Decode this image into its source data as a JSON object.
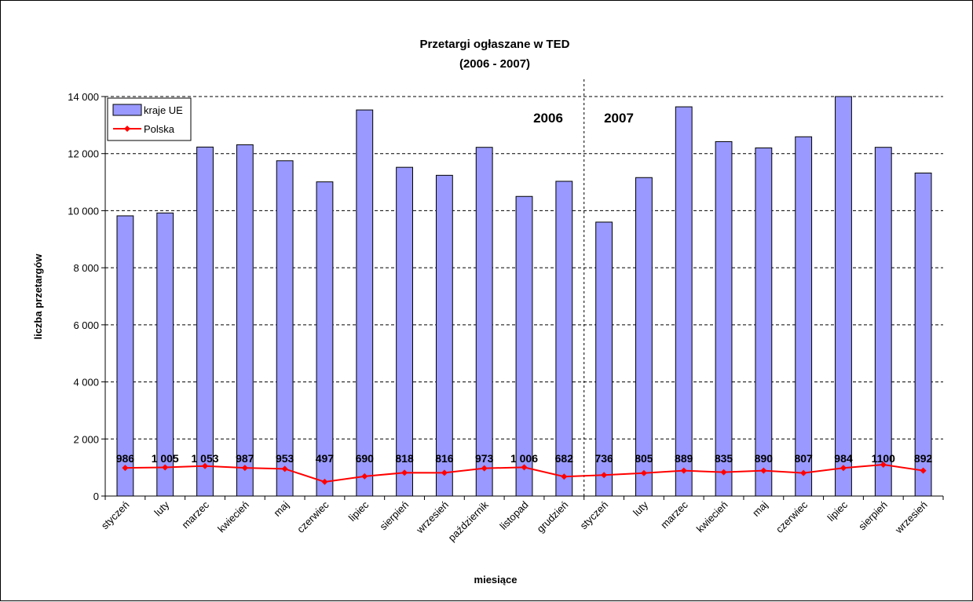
{
  "chart_data": {
    "type": "bar",
    "title": "Przetargi ogłaszane w TED",
    "subtitle": "(2006 - 2007)",
    "xlabel": "miesiące",
    "ylabel": "liczba przetargów",
    "ylim": [
      0,
      14000
    ],
    "yticks": [
      "0",
      "2 000",
      "4 000",
      "6 000",
      "8 000",
      "10 000",
      "12 000",
      "14 000"
    ],
    "ytick_values": [
      0,
      2000,
      4000,
      6000,
      8000,
      10000,
      12000,
      14000
    ],
    "grid": true,
    "legend_position": "top-left",
    "categories": [
      "styczeń",
      "luty",
      "marzec",
      "kwiecień",
      "maj",
      "czerwiec",
      "lipiec",
      "sierpień",
      "wrzesień",
      "październik",
      "listopad",
      "grudzień",
      "styczeń",
      "luty",
      "marzec",
      "kwiecień",
      "maj",
      "czerwiec",
      "lipiec",
      "sierpień",
      "wrzesień"
    ],
    "year_labels": [
      "2006",
      "2007"
    ],
    "series": [
      {
        "name": "kraje UE",
        "type": "bar",
        "color": "#9999ff",
        "values": [
          9820,
          9920,
          12230,
          12310,
          11750,
          11010,
          13530,
          11520,
          11240,
          12220,
          10500,
          11030,
          9600,
          11160,
          13640,
          12420,
          12200,
          12590,
          14090,
          12220,
          11320
        ]
      },
      {
        "name": "Polska",
        "type": "line",
        "color": "#ff0000",
        "values": [
          986,
          1005,
          1053,
          987,
          953,
          497,
          690,
          818,
          816,
          973,
          1006,
          682,
          736,
          805,
          889,
          835,
          890,
          807,
          984,
          1100,
          892
        ],
        "data_labels": [
          "986",
          "1 005",
          "1 053",
          "987",
          "953",
          "497",
          "690",
          "818",
          "816",
          "973",
          "1 006",
          "682",
          "736",
          "805",
          "889",
          "835",
          "890",
          "807",
          "984",
          "1100",
          "892"
        ]
      }
    ]
  }
}
